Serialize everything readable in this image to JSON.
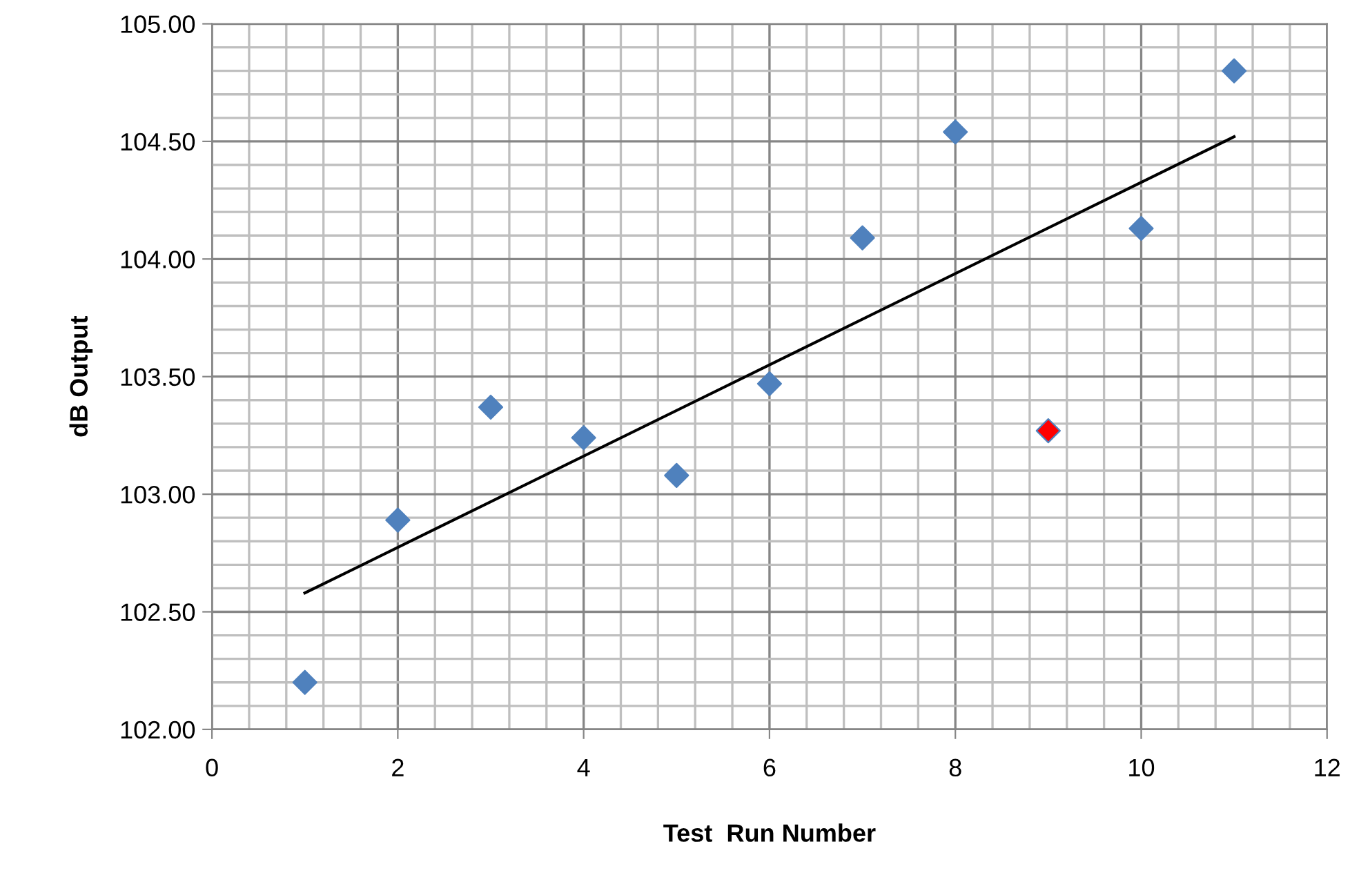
{
  "chart_data": {
    "type": "scatter",
    "xlabel": "Test  Run Number",
    "ylabel": "dB Output",
    "xlim": [
      0,
      12
    ],
    "ylim": [
      102,
      105
    ],
    "xticks": [
      0,
      {
        "value": 0.4,
        "label": null
      },
      {
        "value": 0.8,
        "label": null
      },
      {
        "value": 1.2,
        "label": null
      },
      {
        "value": 1.6,
        "label": null
      },
      2,
      {
        "value": 2.4,
        "label": null
      },
      {
        "value": 2.8,
        "label": null
      },
      {
        "value": 3.2,
        "label": null
      },
      {
        "value": 3.6,
        "label": null
      },
      4,
      {
        "value": 4.4,
        "label": null
      },
      {
        "value": 4.8,
        "label": null
      },
      {
        "value": 5.2,
        "label": null
      },
      {
        "value": 5.6,
        "label": null
      },
      6,
      {
        "value": 6.4,
        "label": null
      },
      {
        "value": 6.8,
        "label": null
      },
      {
        "value": 7.2,
        "label": null
      },
      {
        "value": 7.6,
        "label": null
      },
      8,
      {
        "value": 8.4,
        "label": null
      },
      {
        "value": 8.8,
        "label": null
      },
      {
        "value": 9.2,
        "label": null
      },
      {
        "value": 9.6,
        "label": null
      },
      10,
      {
        "value": 10.4,
        "label": null
      },
      {
        "value": 10.8,
        "label": null
      },
      {
        "value": 11.2,
        "label": null
      },
      {
        "value": 11.6,
        "label": null
      },
      12
    ],
    "yticks": [
      {
        "value": 102,
        "label": "102.00"
      },
      {
        "value": 102.1,
        "label": null
      },
      {
        "value": 102.2,
        "label": null
      },
      {
        "value": 102.3,
        "label": null
      },
      {
        "value": 102.4,
        "label": null
      },
      {
        "value": 102.5,
        "label": "102.50"
      },
      {
        "value": 102.6,
        "label": null
      },
      {
        "value": 102.7,
        "label": null
      },
      {
        "value": 102.8,
        "label": null
      },
      {
        "value": 102.9,
        "label": null
      },
      {
        "value": 103,
        "label": "103.00"
      },
      {
        "value": 103.1,
        "label": null
      },
      {
        "value": 103.2,
        "label": null
      },
      {
        "value": 103.3,
        "label": null
      },
      {
        "value": 103.4,
        "label": null
      },
      {
        "value": 103.5,
        "label": "103.50"
      },
      {
        "value": 103.6,
        "label": null
      },
      {
        "value": 103.7,
        "label": null
      },
      {
        "value": 103.8,
        "label": null
      },
      {
        "value": 103.9,
        "label": null
      },
      {
        "value": 104,
        "label": "104.00"
      },
      {
        "value": 104.1,
        "label": null
      },
      {
        "value": 104.2,
        "label": null
      },
      {
        "value": 104.3,
        "label": null
      },
      {
        "value": 104.4,
        "label": null
      },
      {
        "value": 104.5,
        "label": "104.50"
      },
      {
        "value": 104.6,
        "label": null
      },
      {
        "value": 104.7,
        "label": null
      },
      {
        "value": 104.8,
        "label": null
      },
      {
        "value": 104.9,
        "label": null
      },
      {
        "value": 105,
        "label": "105.00"
      }
    ],
    "grid": true,
    "marker": "diamond",
    "series": [
      {
        "color": "#4f81bd",
        "x": [
          1,
          2,
          3,
          4,
          5,
          6,
          7,
          8,
          9,
          10,
          11
        ],
        "values": [
          102.2,
          102.89,
          103.37,
          103.24,
          103.08,
          103.47,
          104.09,
          104.54,
          103.27,
          104.13,
          104.8
        ],
        "colors": [
          "#4f81bd",
          "#4f81bd",
          "#4f81bd",
          "#4f81bd",
          "#4f81bd",
          "#4f81bd",
          "#4f81bd",
          "#4f81bd",
          "#ff0000",
          "#4f81bd",
          "#4f81bd"
        ]
      },
      {
        "type": "line",
        "color": "#000000",
        "line_style": "solid",
        "marker": "none",
        "x": [
          1,
          11
        ],
        "values": [
          102.58,
          104.52
        ]
      }
    ]
  }
}
